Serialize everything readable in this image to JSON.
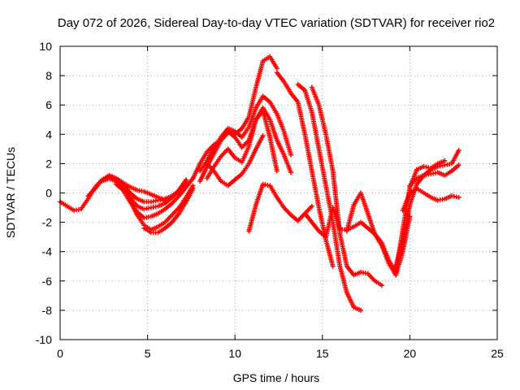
{
  "chart_data": {
    "type": "scatter",
    "title": "Day 072 of 2026, Sidereal Day-to-day VTEC variation (SDTVAR) for receiver rio2",
    "xlabel": "GPS time / hours",
    "ylabel": "SDTVAR / TECUs",
    "xlim": [
      0,
      25
    ],
    "ylim": [
      -10,
      10
    ],
    "xticks": [
      0,
      5,
      10,
      15,
      20,
      25
    ],
    "yticks": [
      -10,
      -8,
      -6,
      -4,
      -2,
      0,
      2,
      4,
      6,
      8,
      10
    ],
    "grid": true,
    "marker": "plus",
    "color": "#ff0000",
    "series": [
      {
        "x": [
          0.0,
          0.4,
          0.8,
          1.2,
          1.6,
          2.0,
          2.4,
          2.8,
          3.2,
          3.6,
          4.0,
          4.4,
          4.8,
          5.2,
          5.6,
          6.0,
          6.4,
          6.8,
          7.2
        ],
        "y": [
          -0.6,
          -0.9,
          -1.2,
          -1.1,
          -0.4,
          0.4,
          0.9,
          1.1,
          1.0,
          0.7,
          0.4,
          0.2,
          0.1,
          -0.1,
          -0.3,
          -0.5,
          -0.3,
          0.2,
          0.9
        ]
      },
      {
        "x": [
          1.6,
          2.0,
          2.4,
          2.8,
          3.2,
          3.6,
          4.0,
          4.4,
          4.8,
          5.2,
          5.6,
          6.0,
          6.4,
          6.8,
          7.2
        ],
        "y": [
          -0.2,
          0.3,
          0.9,
          1.2,
          1.0,
          0.6,
          0.0,
          -0.4,
          -0.6,
          -0.6,
          -0.5,
          -0.4,
          -0.2,
          0.1,
          0.6
        ]
      },
      {
        "x": [
          2.4,
          2.8,
          3.2,
          3.6,
          4.0,
          4.4,
          4.8,
          5.2,
          5.6,
          6.0,
          6.4,
          6.8,
          7.2
        ],
        "y": [
          0.8,
          1.0,
          0.8,
          0.4,
          -0.3,
          -0.9,
          -1.1,
          -1.0,
          -0.9,
          -0.7,
          -0.3,
          0.2,
          0.8
        ]
      },
      {
        "x": [
          3.2,
          3.6,
          4.0,
          4.4,
          4.8,
          5.2,
          5.6,
          6.0,
          6.4,
          6.8,
          7.2,
          7.6
        ],
        "y": [
          0.6,
          0.2,
          -0.6,
          -1.3,
          -1.7,
          -1.6,
          -1.4,
          -1.1,
          -0.7,
          -0.2,
          0.4,
          1.0
        ]
      },
      {
        "x": [
          3.6,
          4.0,
          4.4,
          4.8,
          5.2,
          5.6,
          6.0,
          6.4,
          6.8,
          7.2,
          7.6
        ],
        "y": [
          0.4,
          -0.5,
          -1.5,
          -2.2,
          -2.5,
          -2.3,
          -2.0,
          -1.5,
          -1.0,
          -0.3,
          0.5
        ]
      },
      {
        "x": [
          4.8,
          5.2,
          5.6,
          6.0,
          6.4,
          6.8,
          7.2,
          7.6
        ],
        "y": [
          -2.4,
          -2.7,
          -2.7,
          -2.4,
          -2.0,
          -1.4,
          -0.6,
          0.3
        ]
      },
      {
        "x": [
          7.6,
          8.0,
          8.4,
          8.8,
          9.2,
          9.6,
          10.0,
          10.4,
          10.8,
          11.2,
          11.6,
          12.0,
          12.4
        ],
        "y": [
          1.0,
          2.0,
          2.8,
          3.3,
          3.6,
          4.1,
          4.0,
          4.4,
          5.2,
          7.2,
          9.0,
          9.3,
          8.5
        ]
      },
      {
        "x": [
          8.0,
          8.4,
          8.8,
          9.2,
          9.6,
          10.0,
          10.4,
          10.8,
          11.2,
          11.6,
          12.0,
          12.4,
          12.8,
          13.2
        ],
        "y": [
          1.5,
          2.2,
          3.1,
          3.8,
          4.4,
          4.2,
          3.8,
          4.5,
          5.8,
          6.6,
          6.2,
          5.4,
          4.2,
          2.6
        ]
      },
      {
        "x": [
          8.0,
          8.4,
          8.8,
          9.2,
          9.6,
          10.0,
          10.4,
          10.8,
          11.2,
          11.6,
          12.0,
          12.4,
          12.8,
          13.2
        ],
        "y": [
          0.8,
          1.8,
          2.7,
          3.6,
          4.2,
          3.8,
          3.1,
          3.6,
          5.0,
          5.8,
          5.0,
          3.6,
          2.6,
          1.4
        ]
      },
      {
        "x": [
          8.4,
          8.8,
          9.2,
          9.6,
          10.0,
          10.4,
          10.8,
          11.2,
          11.6,
          12.0,
          12.4
        ],
        "y": [
          1.0,
          1.8,
          2.5,
          3.0,
          2.4,
          2.1,
          3.2,
          5.0,
          5.6,
          3.8,
          1.5
        ]
      },
      {
        "x": [
          8.4,
          8.8,
          9.2,
          9.6,
          10.0,
          10.4,
          10.8,
          11.2,
          11.6
        ],
        "y": [
          2.0,
          1.5,
          0.8,
          0.5,
          0.9,
          1.3,
          2.0,
          3.0,
          3.9
        ]
      },
      {
        "x": [
          10.8,
          11.2,
          11.6,
          12.0,
          12.4,
          12.8,
          13.2,
          13.6,
          14.0,
          14.4
        ],
        "y": [
          -2.6,
          -0.8,
          0.6,
          0.5,
          -0.3,
          -1.0,
          -1.5,
          -1.9,
          -1.4,
          -0.9
        ]
      },
      {
        "x": [
          12.4,
          12.8,
          13.2,
          13.6,
          14.0,
          14.4,
          14.8,
          15.2,
          15.6
        ],
        "y": [
          8.2,
          7.6,
          6.8,
          6.2,
          4.0,
          1.5,
          -1.0,
          -3.2,
          -5.0
        ]
      },
      {
        "x": [
          13.6,
          14.0,
          14.4,
          14.8,
          15.2,
          15.6,
          16.0,
          16.4,
          16.8,
          17.2
        ],
        "y": [
          7.4,
          7.0,
          5.5,
          3.0,
          0.5,
          -2.0,
          -5.0,
          -6.8,
          -7.8,
          -8.0
        ]
      },
      {
        "x": [
          14.4,
          14.8,
          15.2,
          15.6,
          16.0,
          16.4,
          16.8,
          17.2,
          17.6,
          18.0,
          18.4
        ],
        "y": [
          7.2,
          6.0,
          4.0,
          1.5,
          -2.8,
          -5.0,
          -5.6,
          -5.4,
          -5.5,
          -6.0,
          -6.3
        ]
      },
      {
        "x": [
          14.0,
          14.4,
          14.8,
          15.2,
          15.6,
          16.0,
          16.4,
          16.8,
          17.2,
          17.6,
          18.0,
          18.4,
          18.8,
          19.2,
          19.6,
          20.0
        ],
        "y": [
          -1.4,
          -2.0,
          -2.6,
          -3.0,
          -1.0,
          -2.5,
          -2.5,
          -2.3,
          -2.0,
          -2.4,
          -2.8,
          -3.6,
          -4.8,
          -5.6,
          -4.0,
          -1.6
        ]
      },
      {
        "x": [
          16.4,
          16.8,
          17.2,
          17.6,
          18.0,
          18.4,
          18.8,
          19.2,
          19.6,
          20.0,
          20.4,
          20.8,
          21.2,
          21.6,
          22.0
        ],
        "y": [
          -2.6,
          -0.8,
          0.0,
          -1.4,
          -2.8,
          -3.4,
          -4.6,
          -5.4,
          -2.5,
          0.4,
          1.6,
          1.8,
          1.7,
          2.0,
          2.2
        ]
      },
      {
        "x": [
          19.2,
          19.6,
          20.0,
          20.4,
          20.8,
          21.2,
          21.6,
          22.0,
          22.4,
          22.8
        ],
        "y": [
          -5.0,
          -3.2,
          -0.8,
          0.6,
          1.2,
          1.6,
          1.8,
          1.9,
          2.0,
          2.9
        ]
      },
      {
        "x": [
          19.6,
          20.0,
          20.4,
          20.8,
          21.2,
          21.6,
          22.0,
          22.4,
          22.8
        ],
        "y": [
          -1.2,
          0.0,
          0.3,
          0.0,
          -0.3,
          -0.5,
          -0.4,
          -0.2,
          -0.3
        ]
      },
      {
        "x": [
          20.0,
          20.4,
          20.8,
          21.2,
          21.6,
          22.0,
          22.4,
          22.8
        ],
        "y": [
          0.5,
          1.0,
          1.2,
          1.3,
          1.4,
          1.2,
          1.5,
          1.9
        ]
      }
    ]
  }
}
